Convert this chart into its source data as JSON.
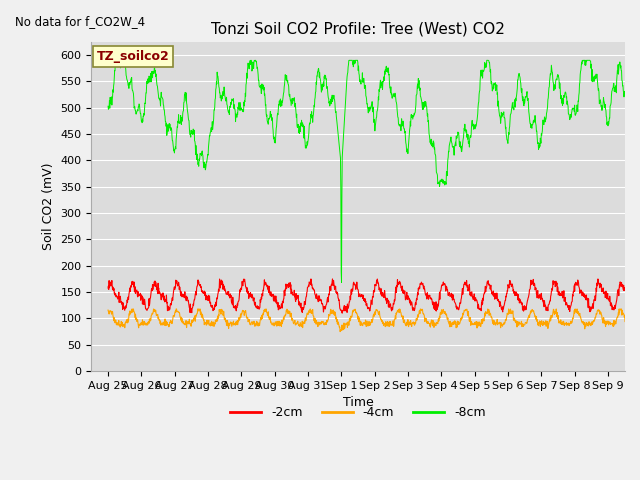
{
  "title": "Tonzi Soil CO2 Profile: Tree (West) CO2",
  "no_data_text": "No data for f_CO2W_4",
  "ylabel": "Soil CO2 (mV)",
  "xlabel": "Time",
  "ylim": [
    0,
    625
  ],
  "yticks": [
    0,
    50,
    100,
    150,
    200,
    250,
    300,
    350,
    400,
    450,
    500,
    550,
    600
  ],
  "bg_color": "#dcdcdc",
  "plot_bg_color": "#dcdcdc",
  "legend_label_2cm": "-2cm",
  "legend_label_4cm": "-4cm",
  "legend_label_8cm": "-8cm",
  "color_2cm": "#ff0000",
  "color_4cm": "#ffa500",
  "color_8cm": "#00ee00",
  "legend_box_color": "#ffffcc",
  "legend_box_text": "TZ_soilco2",
  "legend_box_text_color": "#8b0000",
  "title_fontsize": 11,
  "axis_fontsize": 9,
  "tick_fontsize": 8,
  "figwidth": 6.4,
  "figheight": 4.8,
  "dpi": 100
}
